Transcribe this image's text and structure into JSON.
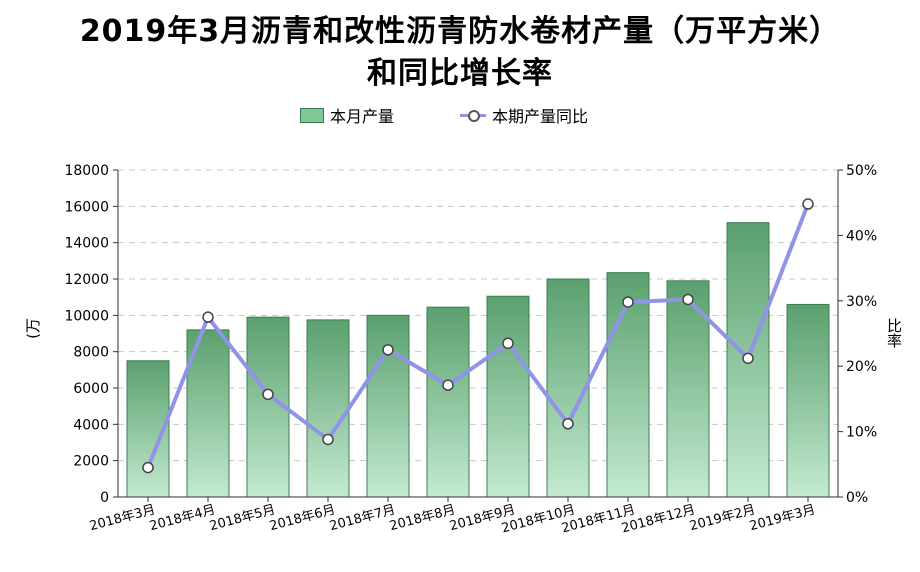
{
  "chart_data": {
    "type": "bar",
    "title_line1": "2019年3月沥青和改性沥青防水卷材产量（万平方米）",
    "title_line2": "和同比增长率",
    "categories": [
      "2018年3月",
      "2018年4月",
      "2018年5月",
      "2018年6月",
      "2018年7月",
      "2018年8月",
      "2018年9月",
      "2018年10月",
      "2018年11月",
      "2018年12月",
      "2019年2月",
      "2019年3月"
    ],
    "series": [
      {
        "name": "本月产量",
        "type": "bar",
        "axis": "left",
        "values": [
          7500,
          9200,
          9900,
          9750,
          10000,
          10450,
          11050,
          12000,
          12350,
          11900,
          15100,
          10600
        ]
      },
      {
        "name": "本期产量同比",
        "type": "line",
        "axis": "right",
        "values": [
          4.5,
          27.5,
          15.7,
          8.8,
          22.5,
          17.1,
          23.5,
          11.2,
          29.8,
          30.2,
          21.2,
          44.8
        ]
      }
    ],
    "y_left": {
      "label": "(万",
      "min": 0,
      "max": 18000,
      "ticks": [
        "0",
        "2000",
        "4000",
        "6000",
        "8000",
        "10000",
        "12000",
        "14000",
        "16000",
        "18000"
      ]
    },
    "y_right": {
      "label": "比率",
      "min": 0,
      "max": 50,
      "ticks": [
        "0%",
        "10%",
        "20%",
        "30%",
        "40%",
        "50%"
      ]
    },
    "grid": true,
    "legend_position": "top-center",
    "colors": {
      "bar_top": "#5aa06e",
      "bar_bottom": "#c3ead0",
      "bar_stroke": "#3f7d52",
      "line": "#8f94e8",
      "grid": "#c8c8c8"
    }
  }
}
